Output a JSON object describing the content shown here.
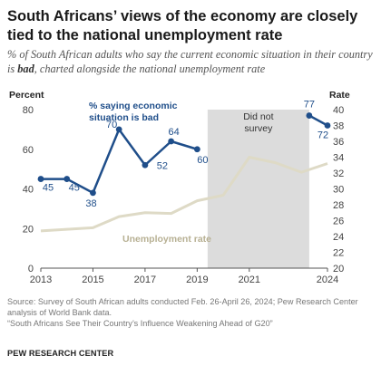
{
  "title": "South Africans’ views of the economy are closely tied to the national unemployment rate",
  "subtitle_prefix": "% of South African adults who say the current economic situation in their country is ",
  "subtitle_bold": "bad",
  "subtitle_suffix": ", charted alongside the national unemployment rate",
  "source": "Source: Survey of South African adults conducted Feb. 26-April 26, 2024; Pew Research Center analysis of World Bank data.",
  "report": "“South Africans See Their Country’s Influence Weakening Ahead of G20”",
  "brand": "PEW RESEARCH CENTER",
  "chart_data": {
    "type": "line",
    "left_axis": {
      "label": "Percent",
      "ticks": [
        0,
        20,
        40,
        60,
        80
      ],
      "range": [
        0,
        80
      ]
    },
    "right_axis": {
      "label": "Rate",
      "ticks": [
        20,
        22,
        24,
        26,
        28,
        30,
        32,
        34,
        36,
        38,
        40
      ],
      "range": [
        20,
        40
      ]
    },
    "x_axis": {
      "ticks": [
        2013,
        2015,
        2017,
        2019,
        2021,
        2024
      ],
      "range": [
        2013,
        2024
      ]
    },
    "shaded_region": {
      "x": [
        2019.4,
        2023.3
      ],
      "label_lines": [
        "Did not",
        "survey"
      ]
    },
    "series": [
      {
        "name": "% saying economic situation is bad",
        "label_lines": [
          "% saying economic",
          "situation is bad"
        ],
        "axis": "left",
        "color": "#1f4e8a",
        "segments": [
          [
            {
              "x": 2013,
              "y": 45,
              "label": "45"
            },
            {
              "x": 2014,
              "y": 45,
              "label": "45"
            },
            {
              "x": 2015,
              "y": 38,
              "label": "38"
            },
            {
              "x": 2016,
              "y": 70,
              "label": "70"
            },
            {
              "x": 2017,
              "y": 52,
              "label": "52"
            },
            {
              "x": 2018,
              "y": 64,
              "label": "64"
            },
            {
              "x": 2019,
              "y": 60,
              "label": "60"
            }
          ],
          [
            {
              "x": 2023.3,
              "y": 77,
              "label": "77"
            },
            {
              "x": 2024,
              "y": 72,
              "label": "72"
            }
          ]
        ]
      },
      {
        "name": "Unemployment rate",
        "axis": "right",
        "color": "#dedac6",
        "points": [
          {
            "x": 2013,
            "y": 24.7
          },
          {
            "x": 2014,
            "y": 24.9
          },
          {
            "x": 2015,
            "y": 25.1
          },
          {
            "x": 2016,
            "y": 26.5
          },
          {
            "x": 2017,
            "y": 27.0
          },
          {
            "x": 2018,
            "y": 26.9
          },
          {
            "x": 2019,
            "y": 28.5
          },
          {
            "x": 2020,
            "y": 29.2
          },
          {
            "x": 2021,
            "y": 34.0
          },
          {
            "x": 2022,
            "y": 33.3
          },
          {
            "x": 2023,
            "y": 32.1
          },
          {
            "x": 2024,
            "y": 33.2
          }
        ]
      }
    ]
  }
}
